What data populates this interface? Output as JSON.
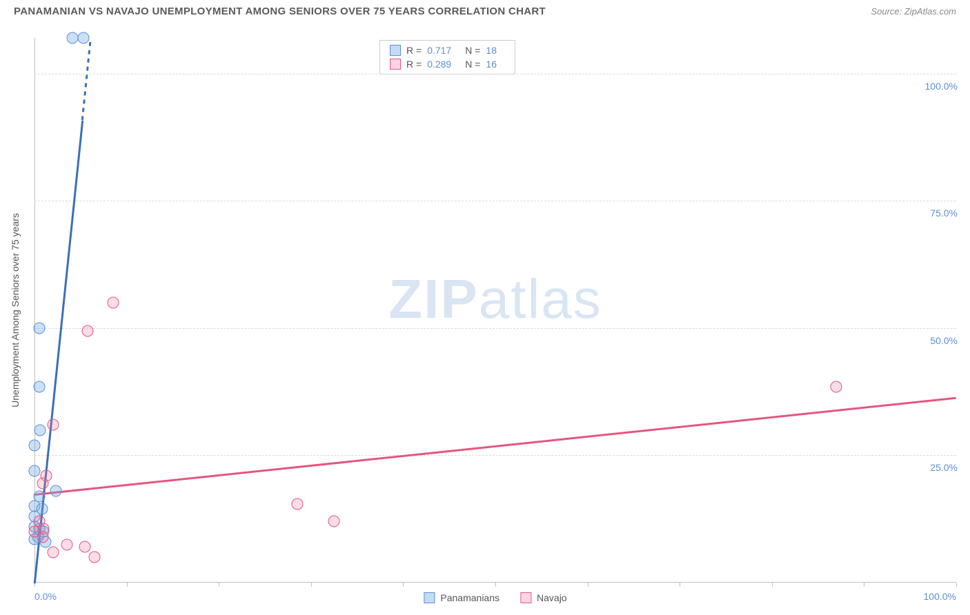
{
  "header": {
    "title": "PANAMANIAN VS NAVAJO UNEMPLOYMENT AMONG SENIORS OVER 75 YEARS CORRELATION CHART",
    "source": "Source: ZipAtlas.com"
  },
  "chart": {
    "type": "scatter",
    "y_axis_label": "Unemployment Among Seniors over 75 years",
    "xlim": [
      0,
      100
    ],
    "ylim": [
      0,
      107
    ],
    "x_ticks": [
      0,
      10,
      20,
      30,
      40,
      50,
      60,
      70,
      80,
      90,
      100
    ],
    "x_tick_labels": {
      "0": "0.0%",
      "100": "100.0%"
    },
    "y_ticks": [
      25,
      50,
      75,
      100
    ],
    "y_tick_labels": {
      "25": "25.0%",
      "50": "50.0%",
      "75": "75.0%",
      "100": "100.0%"
    },
    "background_color": "#ffffff",
    "grid_color": "#d8d8d8",
    "marker_size": 17,
    "watermark": {
      "zip": "ZIP",
      "atlas": "atlas"
    },
    "series": [
      {
        "name": "Panamanians",
        "color_fill": "rgba(110,165,226,0.35)",
        "color_stroke": "#5b8fd6",
        "class": "blue",
        "R": "0.717",
        "N": "18",
        "trend": {
          "x1": 0,
          "y1": 0,
          "x2": 5.2,
          "y2": 91,
          "x2_dash": 6.1,
          "y2_dash": 107
        },
        "points": [
          {
            "x": 4.1,
            "y": 107
          },
          {
            "x": 5.3,
            "y": 107
          },
          {
            "x": 0.5,
            "y": 50
          },
          {
            "x": 0.5,
            "y": 38.5
          },
          {
            "x": 0.6,
            "y": 30
          },
          {
            "x": 0.0,
            "y": 27
          },
          {
            "x": 0.0,
            "y": 22
          },
          {
            "x": 2.3,
            "y": 18
          },
          {
            "x": 0.5,
            "y": 17
          },
          {
            "x": 0.0,
            "y": 15
          },
          {
            "x": 0.8,
            "y": 14.5
          },
          {
            "x": 0.0,
            "y": 13
          },
          {
            "x": 0.0,
            "y": 11
          },
          {
            "x": 0.5,
            "y": 10.5
          },
          {
            "x": 1.0,
            "y": 10
          },
          {
            "x": 0.4,
            "y": 9
          },
          {
            "x": 0.0,
            "y": 8.5
          },
          {
            "x": 1.2,
            "y": 8
          }
        ]
      },
      {
        "name": "Navajo",
        "color_fill": "rgba(236,120,156,0.25)",
        "color_stroke": "#e6557f",
        "class": "pink",
        "R": "0.289",
        "N": "16",
        "trend": {
          "x1": 0,
          "y1": 17.5,
          "x2": 100,
          "y2": 36.5
        },
        "points": [
          {
            "x": 8.5,
            "y": 55
          },
          {
            "x": 5.8,
            "y": 49.5
          },
          {
            "x": 87,
            "y": 38.5
          },
          {
            "x": 2.0,
            "y": 31
          },
          {
            "x": 1.3,
            "y": 21
          },
          {
            "x": 0.9,
            "y": 19.5
          },
          {
            "x": 28.5,
            "y": 15.5
          },
          {
            "x": 32.5,
            "y": 12
          },
          {
            "x": 0.5,
            "y": 12
          },
          {
            "x": 1.0,
            "y": 10.5
          },
          {
            "x": 0.0,
            "y": 10
          },
          {
            "x": 0.9,
            "y": 9
          },
          {
            "x": 3.5,
            "y": 7.5
          },
          {
            "x": 5.5,
            "y": 7
          },
          {
            "x": 2.0,
            "y": 6
          },
          {
            "x": 6.5,
            "y": 5
          }
        ]
      }
    ],
    "legend_labels": {
      "R": "R =",
      "N": "N ="
    }
  }
}
